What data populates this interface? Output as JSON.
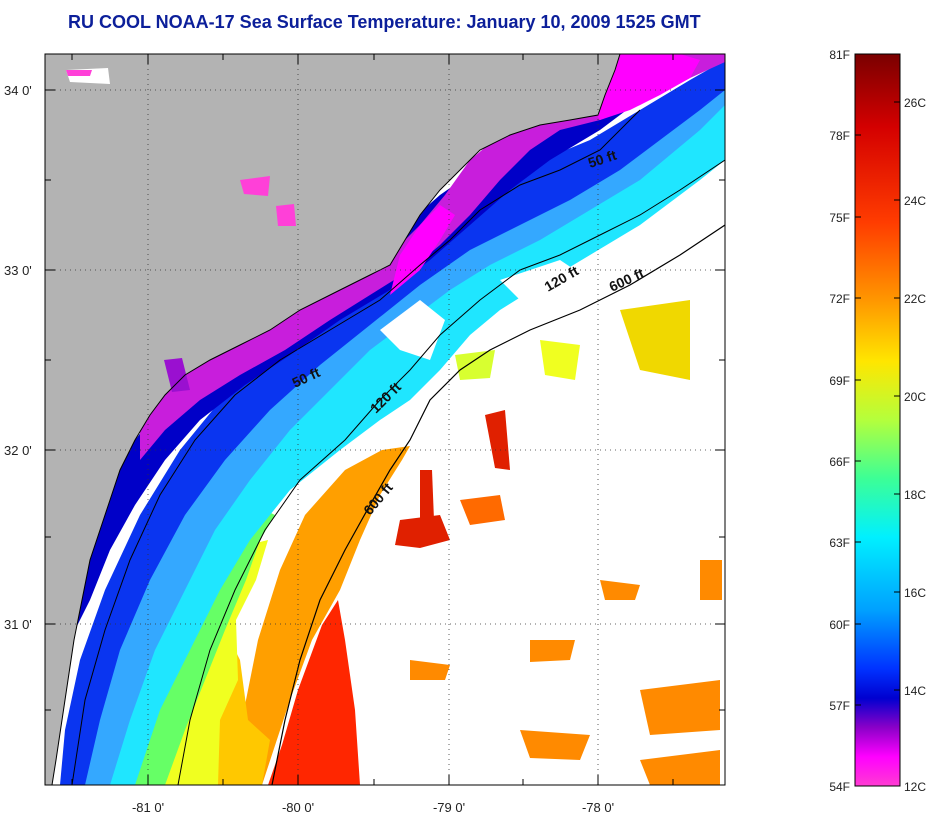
{
  "title": "RU COOL  NOAA-17  Sea Surface Temperature:  January 10, 2009 1525 GMT",
  "map": {
    "lat_ticks": [
      "34 0'",
      "33 0'",
      "32 0'",
      "31 0'"
    ],
    "lon_ticks": [
      "-81 0'",
      "-80 0'",
      "-79 0'",
      "-78 0'"
    ],
    "contour_labels": [
      "50 ft",
      "50 ft",
      "120 ft",
      "120 ft",
      "600 ft",
      "600 ft"
    ],
    "colors": {
      "land": "#b3b3b3",
      "cloud": "#ffffff",
      "coastline": "#000000",
      "grid": "#333333"
    }
  },
  "colorbar": {
    "fahrenheit_labels": [
      "81F",
      "78F",
      "75F",
      "72F",
      "69F",
      "66F",
      "63F",
      "60F",
      "57F",
      "54F"
    ],
    "celsius_labels": [
      "26C",
      "24C",
      "22C",
      "20C",
      "18C",
      "16C",
      "14C",
      "12C"
    ],
    "gradient_colors": [
      "#7a0000",
      "#d40000",
      "#ff3c00",
      "#ff9a00",
      "#ffe600",
      "#b4ff3c",
      "#3cff96",
      "#00f0ff",
      "#00a0ff",
      "#0032ff",
      "#0000d0",
      "#8a00c8",
      "#ff00ff",
      "#ff3cd2"
    ]
  }
}
